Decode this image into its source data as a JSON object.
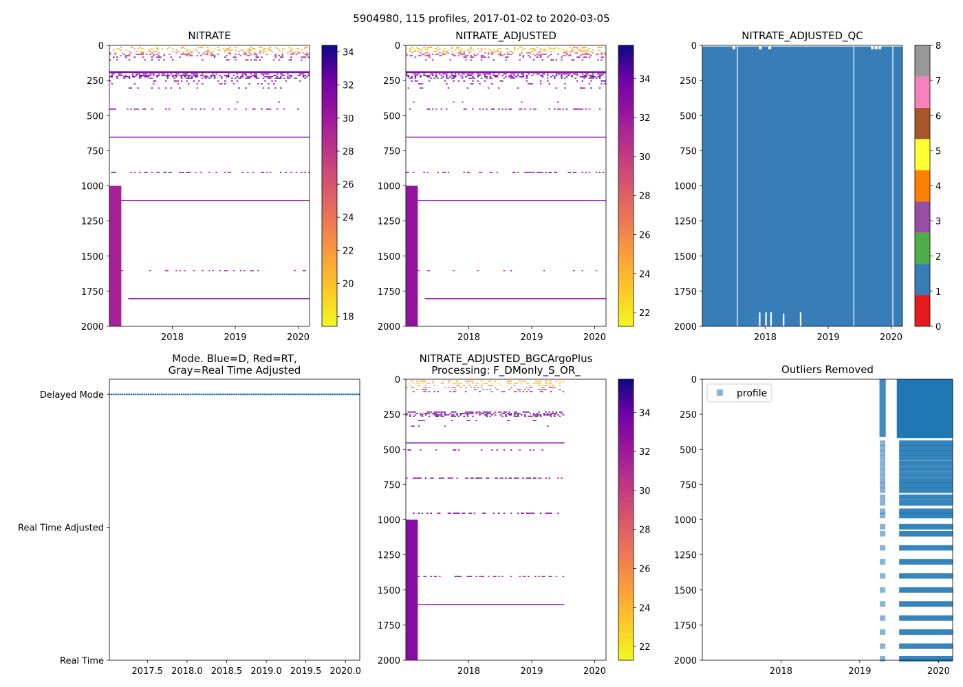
{
  "suptitle": "5904980, 115 profiles, 2017-01-02 to 2020-03-05",
  "chart_data": [
    {
      "id": "nitrate",
      "type": "heatmap",
      "title": "NITRATE",
      "xlabel": "",
      "ylabel": "",
      "xlim": [
        2017.0,
        2020.18
      ],
      "ylim": [
        2000,
        0
      ],
      "x_ticks": [
        2018,
        2019,
        2020
      ],
      "x_tick_labels": [
        "2018",
        "2019",
        "2020"
      ],
      "y_ticks": [
        0,
        250,
        500,
        750,
        1000,
        1250,
        1500,
        1750,
        2000
      ],
      "y_tick_labels": [
        "0",
        "250",
        "500",
        "750",
        "1000",
        "1250",
        "1500",
        "1750",
        "2000"
      ],
      "colormap": "plasma_r",
      "colorbar": {
        "range": [
          17.4,
          34.4
        ],
        "ticks": [
          18,
          20,
          22,
          24,
          26,
          28,
          30,
          32,
          34
        ],
        "tick_labels": [
          "18",
          "20",
          "22",
          "24",
          "26",
          "28",
          "30",
          "32",
          "34"
        ]
      },
      "bands": [
        {
          "depth": 185,
          "x": [
            2017.0,
            2020.18
          ],
          "value": 33.0
        },
        {
          "depth": 190,
          "x": [
            2017.0,
            2020.18
          ],
          "value": 31.5
        },
        {
          "depth": 650,
          "x": [
            2017.0,
            2020.18
          ],
          "value": 32.0
        },
        {
          "depth": 1100,
          "x": [
            2017.19,
            2020.18
          ],
          "value": 31.5
        },
        {
          "depth": 1800,
          "x": [
            2017.3,
            2020.18
          ],
          "value": 30.5
        }
      ],
      "scatter_rows": [
        {
          "depth": 10,
          "value": 22,
          "density": 0.25
        },
        {
          "depth": 20,
          "value": 20,
          "density": 0.3
        },
        {
          "depth": 30,
          "value": 21,
          "density": 0.3
        },
        {
          "depth": 40,
          "value": 22,
          "density": 0.25
        },
        {
          "depth": 50,
          "value": 24,
          "density": 0.3
        },
        {
          "depth": 60,
          "value": 27,
          "density": 0.3
        },
        {
          "depth": 70,
          "value": 29,
          "density": 0.25
        },
        {
          "depth": 80,
          "value": 31,
          "density": 0.2
        },
        {
          "depth": 100,
          "value": 32,
          "density": 0.15
        },
        {
          "depth": 200,
          "value": 31,
          "density": 0.5
        },
        {
          "depth": 210,
          "value": 32,
          "density": 0.45
        },
        {
          "depth": 220,
          "value": 32,
          "density": 0.4
        },
        {
          "depth": 230,
          "value": 33,
          "density": 0.35
        },
        {
          "depth": 250,
          "value": 31,
          "density": 0.15
        },
        {
          "depth": 270,
          "value": 31,
          "density": 0.12
        },
        {
          "depth": 300,
          "value": 31,
          "density": 0.1
        },
        {
          "depth": 400,
          "value": 31,
          "density": 0.05
        },
        {
          "depth": 450,
          "value": 31,
          "density": 0.3
        },
        {
          "depth": 900,
          "value": 31,
          "density": 0.4
        },
        {
          "depth": 1600,
          "value": 30,
          "density": 0.2
        }
      ],
      "block": {
        "x": [
          2017.0,
          2017.19
        ],
        "depth": [
          1000,
          2000
        ],
        "value": 29.5
      }
    },
    {
      "id": "nitrate-adjusted",
      "type": "heatmap",
      "title": "NITRATE_ADJUSTED",
      "xlabel": "",
      "ylabel": "",
      "xlim": [
        2017.0,
        2020.18
      ],
      "ylim": [
        2000,
        0
      ],
      "x_ticks": [
        2018,
        2019,
        2020
      ],
      "x_tick_labels": [
        "2018",
        "2019",
        "2020"
      ],
      "y_ticks": [
        0,
        250,
        500,
        750,
        1000,
        1250,
        1500,
        1750,
        2000
      ],
      "y_tick_labels": [
        "0",
        "250",
        "500",
        "750",
        "1000",
        "1250",
        "1500",
        "1750",
        "2000"
      ],
      "colormap": "plasma_r",
      "colorbar": {
        "range": [
          21.3,
          35.7
        ],
        "ticks": [
          22,
          24,
          26,
          28,
          30,
          32,
          34
        ],
        "tick_labels": [
          "22",
          "24",
          "26",
          "28",
          "30",
          "32",
          "34"
        ]
      },
      "bands": [
        {
          "depth": 185,
          "x": [
            2017.0,
            2020.18
          ],
          "value": 34.5
        },
        {
          "depth": 190,
          "x": [
            2017.0,
            2020.18
          ],
          "value": 33.0
        },
        {
          "depth": 650,
          "x": [
            2017.0,
            2020.18
          ],
          "value": 33.5
        },
        {
          "depth": 1100,
          "x": [
            2017.19,
            2020.18
          ],
          "value": 33.0
        },
        {
          "depth": 1800,
          "x": [
            2017.3,
            2020.18
          ],
          "value": 32.0
        }
      ],
      "scatter_rows": [
        {
          "depth": 10,
          "value": 25,
          "density": 0.25
        },
        {
          "depth": 20,
          "value": 23,
          "density": 0.3
        },
        {
          "depth": 30,
          "value": 24,
          "density": 0.3
        },
        {
          "depth": 40,
          "value": 25,
          "density": 0.25
        },
        {
          "depth": 50,
          "value": 27,
          "density": 0.3
        },
        {
          "depth": 60,
          "value": 29,
          "density": 0.3
        },
        {
          "depth": 70,
          "value": 31,
          "density": 0.25
        },
        {
          "depth": 80,
          "value": 32,
          "density": 0.2
        },
        {
          "depth": 100,
          "value": 33,
          "density": 0.15
        },
        {
          "depth": 200,
          "value": 33,
          "density": 0.5
        },
        {
          "depth": 210,
          "value": 33.5,
          "density": 0.45
        },
        {
          "depth": 220,
          "value": 34,
          "density": 0.4
        },
        {
          "depth": 230,
          "value": 34,
          "density": 0.35
        },
        {
          "depth": 250,
          "value": 33,
          "density": 0.15
        },
        {
          "depth": 270,
          "value": 33,
          "density": 0.12
        },
        {
          "depth": 300,
          "value": 33,
          "density": 0.1
        },
        {
          "depth": 400,
          "value": 33,
          "density": 0.05
        },
        {
          "depth": 450,
          "value": 33,
          "density": 0.3
        },
        {
          "depth": 900,
          "value": 33,
          "density": 0.4
        },
        {
          "depth": 1600,
          "value": 32,
          "density": 0.2
        }
      ],
      "block": {
        "x": [
          2017.0,
          2017.19
        ],
        "depth": [
          1000,
          2000
        ],
        "value": 32.5
      }
    },
    {
      "id": "nitrate-adjusted-qc",
      "type": "heatmap",
      "title": "NITRATE_ADJUSTED_QC",
      "xlabel": "",
      "ylabel": "",
      "xlim": [
        2017.0,
        2020.18
      ],
      "ylim": [
        2000,
        0
      ],
      "x_ticks": [
        2018,
        2019,
        2020
      ],
      "x_tick_labels": [
        "2018",
        "2019",
        "2020"
      ],
      "y_ticks": [
        0,
        250,
        500,
        750,
        1000,
        1250,
        1500,
        1750,
        2000
      ],
      "y_tick_labels": [
        "0",
        "250",
        "500",
        "750",
        "1000",
        "1250",
        "1500",
        "1750",
        "2000"
      ],
      "fill_flag": 1,
      "qc_colors": [
        "#e41a1c",
        "#377eb8",
        "#4daf4a",
        "#984ea3",
        "#ff7f00",
        "#ffff33",
        "#a65628",
        "#f781bf",
        "#999999"
      ],
      "colorbar": {
        "range": [
          0,
          8
        ],
        "ticks": [
          0,
          1,
          2,
          3,
          4,
          5,
          6,
          7,
          8
        ],
        "tick_labels": [
          "0",
          "1",
          "2",
          "3",
          "4",
          "5",
          "6",
          "7",
          "8"
        ]
      },
      "gaps_full": [
        2017.55,
        2019.4,
        2020.02
      ],
      "gaps_bottom": [
        {
          "x": 2017.9,
          "depth": 1900
        },
        {
          "x": 2018.0,
          "depth": 1900
        },
        {
          "x": 2018.08,
          "depth": 1900
        },
        {
          "x": 2018.28,
          "depth": 1910
        },
        {
          "x": 2018.55,
          "depth": 1900
        }
      ],
      "gaps_top": [
        2017.48,
        2017.9,
        2018.05,
        2019.68,
        2019.74,
        2019.8
      ]
    },
    {
      "id": "mode",
      "type": "scatter",
      "title": "Mode. Blue=D, Red=RT,",
      "title_line2": "Gray=Real Time Adjusted",
      "xlabel": "",
      "ylabel": "",
      "xlim": [
        2017.02,
        2020.18
      ],
      "x_ticks": [
        2017.5,
        2018.0,
        2018.5,
        2019.0,
        2019.5,
        2020.0
      ],
      "x_tick_labels": [
        "2017.5",
        "2018.0",
        "2018.5",
        "2019.0",
        "2019.5",
        "2020.0"
      ],
      "y_categories": [
        "Delayed Mode",
        "Real Time Adjusted",
        "Real Time"
      ],
      "series": [
        {
          "name": "Delayed Mode",
          "x_range": [
            2017.02,
            2020.17
          ],
          "count": 115,
          "category": "Delayed Mode",
          "color": "#1f77b4"
        }
      ]
    },
    {
      "id": "bgcargoplus",
      "type": "heatmap",
      "title": "NITRATE_ADJUSTED_BGCArgoPlus",
      "title_line2": "Processing: F_DMonly_S_OR_",
      "xlabel": "",
      "ylabel": "",
      "xlim": [
        2017.0,
        2020.18
      ],
      "ylim": [
        2000,
        0
      ],
      "x_ticks": [
        2018,
        2019,
        2020
      ],
      "x_tick_labels": [
        "2018",
        "2019",
        "2020"
      ],
      "y_ticks": [
        0,
        250,
        500,
        750,
        1000,
        1250,
        1500,
        1750,
        2000
      ],
      "y_tick_labels": [
        "0",
        "250",
        "500",
        "750",
        "1000",
        "1250",
        "1500",
        "1750",
        "2000"
      ],
      "colormap": "plasma_r",
      "colorbar": {
        "range": [
          21.3,
          35.7
        ],
        "ticks": [
          22,
          24,
          26,
          28,
          30,
          32,
          34
        ],
        "tick_labels": [
          "22",
          "24",
          "26",
          "28",
          "30",
          "32",
          "34"
        ]
      },
      "bands": [
        {
          "depth": 450,
          "x": [
            2017.0,
            2019.52
          ],
          "value": 33.5
        },
        {
          "depth": 1600,
          "x": [
            2017.19,
            2019.52
          ],
          "value": 32.5
        }
      ],
      "scatter_rows": [
        {
          "depth": 10,
          "value": 25,
          "density": 0.3,
          "xmax": 2019.52
        },
        {
          "depth": 25,
          "value": 23,
          "density": 0.35,
          "xmax": 2019.52
        },
        {
          "depth": 40,
          "value": 25,
          "density": 0.3,
          "xmax": 2019.52
        },
        {
          "depth": 55,
          "value": 27,
          "density": 0.3,
          "xmax": 2019.52
        },
        {
          "depth": 70,
          "value": 29,
          "density": 0.25,
          "xmax": 2019.52
        },
        {
          "depth": 85,
          "value": 32,
          "density": 0.2,
          "xmax": 2019.52
        },
        {
          "depth": 230,
          "value": 34,
          "density": 0.6,
          "xmax": 2019.52
        },
        {
          "depth": 240,
          "value": 33,
          "density": 0.5,
          "xmax": 2019.52
        },
        {
          "depth": 250,
          "value": 33.5,
          "density": 0.45,
          "xmax": 2019.52
        },
        {
          "depth": 260,
          "value": 34,
          "density": 0.4,
          "xmax": 2019.52
        },
        {
          "depth": 290,
          "value": 33,
          "density": 0.15,
          "xmax": 2019.52
        },
        {
          "depth": 330,
          "value": 33,
          "density": 0.08,
          "xmax": 2019.52
        },
        {
          "depth": 500,
          "value": 33,
          "density": 0.3,
          "xmax": 2019.52
        },
        {
          "depth": 700,
          "value": 33,
          "density": 0.6,
          "xmax": 2019.52
        },
        {
          "depth": 950,
          "value": 33,
          "density": 0.45,
          "xmax": 2019.52
        },
        {
          "depth": 1400,
          "value": 32.5,
          "density": 0.45,
          "xmax": 2019.52
        }
      ],
      "block": {
        "x": [
          2017.0,
          2017.19
        ],
        "depth": [
          1000,
          2000
        ],
        "value": 33.0
      }
    },
    {
      "id": "outliers",
      "type": "scatter",
      "title": "Outliers Removed",
      "xlabel": "",
      "ylabel": "",
      "xlim": [
        2017.0,
        2020.18
      ],
      "ylim": [
        2000,
        0
      ],
      "x_ticks": [
        2018,
        2019,
        2020
      ],
      "x_tick_labels": [
        "2018",
        "2019",
        "2020"
      ],
      "y_ticks": [
        0,
        250,
        500,
        750,
        1000,
        1250,
        1500,
        1750,
        2000
      ],
      "y_tick_labels": [
        "0",
        "250",
        "500",
        "750",
        "1000",
        "1250",
        "1500",
        "1750",
        "2000"
      ],
      "legend": {
        "label": "profile",
        "location": "upper-left",
        "color": "#1f77b4"
      },
      "dense_region": {
        "x": [
          2019.47,
          2020.18
        ],
        "depth": [
          0,
          420
        ]
      },
      "narrow_strip": {
        "x": [
          2019.25,
          2019.33
        ],
        "depth": [
          0,
          410
        ]
      },
      "sample_depths": [
        455,
        490,
        525,
        560,
        600,
        640,
        680,
        720,
        755,
        790,
        840,
        880,
        940,
        970,
        1050,
        1100,
        1200,
        1300,
        1400,
        1500,
        1600,
        1700,
        1800,
        1900,
        1990
      ],
      "narrow_strip_x": 2019.29,
      "dense_x_range": [
        2019.5,
        2020.18
      ]
    }
  ]
}
